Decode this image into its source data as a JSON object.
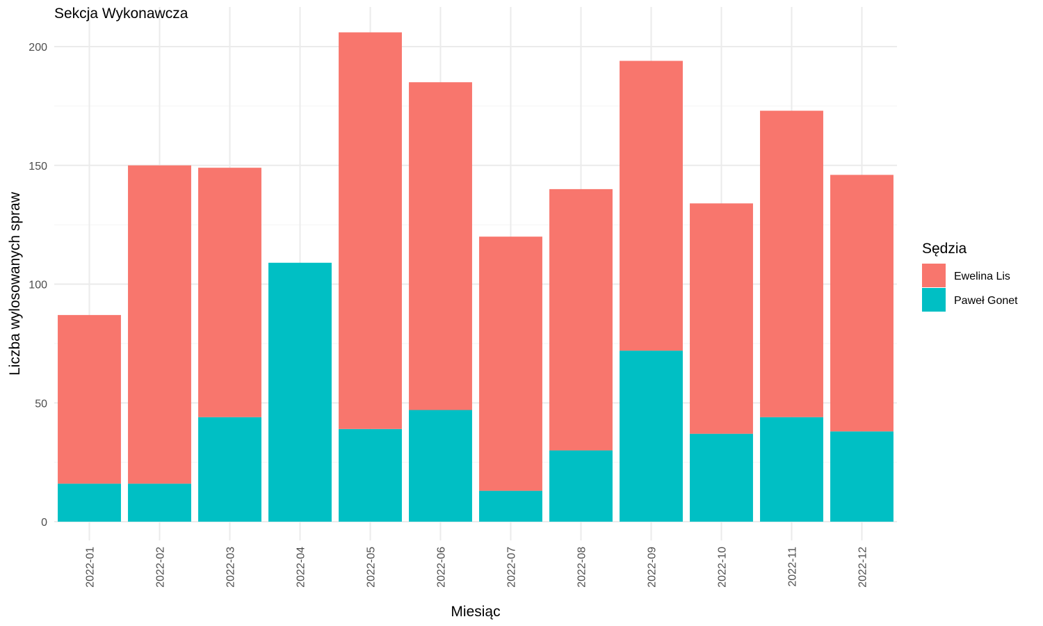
{
  "chart_data": {
    "type": "bar",
    "stacked": true,
    "title": "Sekcja Wykonawcza",
    "xlabel": "Miesiąc",
    "ylabel": "Liczba wylosowanych spraw",
    "ylim": [
      0,
      215
    ],
    "yticks": [
      0,
      50,
      100,
      150,
      200
    ],
    "grid": true,
    "legend": {
      "title": "Sędzia",
      "position": "right"
    },
    "categories": [
      "2022-01",
      "2022-02",
      "2022-03",
      "2022-04",
      "2022-05",
      "2022-06",
      "2022-07",
      "2022-08",
      "2022-09",
      "2022-10",
      "2022-11",
      "2022-12"
    ],
    "series": [
      {
        "name": "Paweł Gonet",
        "color": "#00BFC4",
        "values": [
          16,
          16,
          44,
          109,
          39,
          47,
          13,
          30,
          72,
          37,
          44,
          38
        ]
      },
      {
        "name": "Ewelina Lis",
        "color": "#F8766D",
        "values": [
          71,
          134,
          105,
          0,
          167,
          138,
          107,
          110,
          122,
          97,
          129,
          108
        ]
      }
    ]
  }
}
